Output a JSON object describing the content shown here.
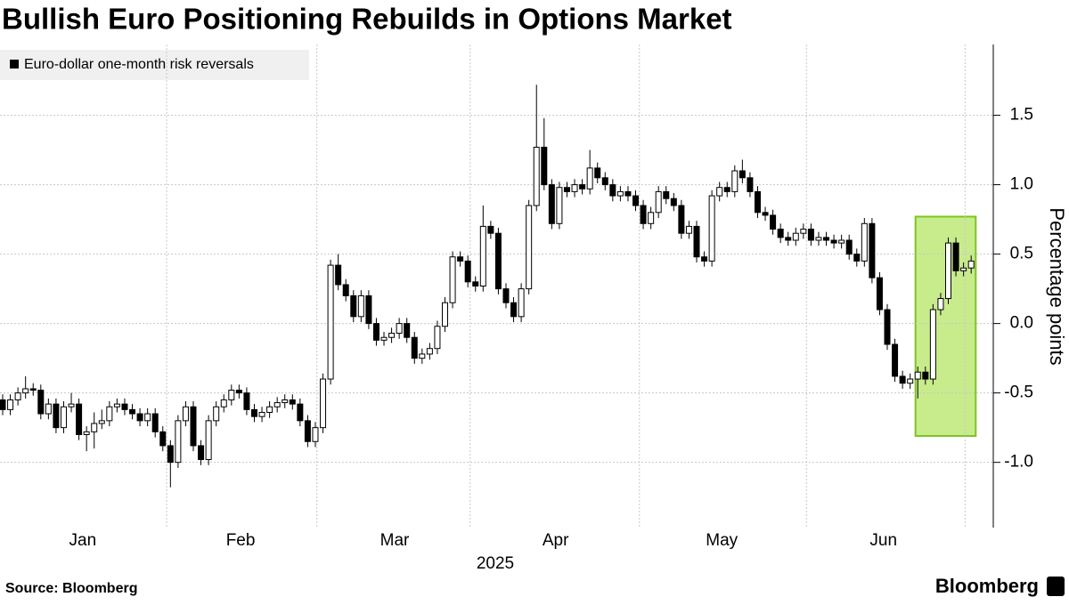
{
  "chart_data": {
    "type": "candlestick",
    "title": "Bullish Euro Positioning Rebuilds in Options Market",
    "legend": "Euro-dollar one-month risk reversals",
    "y_label": "Percentage points",
    "x_label": "2025",
    "source": "Source: Bloomberg",
    "brand": "Bloomberg",
    "up_color": "#ffffff",
    "down_color": "#000000",
    "open": [
      -0.55,
      -0.62,
      -0.55,
      -0.5,
      -0.47,
      -0.48,
      -0.65,
      -0.58,
      -0.75,
      -0.6,
      -0.58,
      -0.8,
      -0.78,
      -0.72,
      -0.7,
      -0.6,
      -0.58,
      -0.62,
      -0.65,
      -0.7,
      -0.65,
      -0.78,
      -0.88,
      -1.0,
      -0.7,
      -0.6,
      -0.88,
      -0.98,
      -0.7,
      -0.6,
      -0.55,
      -0.48,
      -0.5,
      -0.62,
      -0.67,
      -0.64,
      -0.6,
      -0.57,
      -0.55,
      -0.58,
      -0.7,
      -0.85,
      -0.75,
      -0.4,
      0.42,
      0.28,
      0.2,
      0.05,
      0.2,
      0.0,
      -0.12,
      -0.1,
      -0.07,
      0.0,
      -0.1,
      -0.25,
      -0.22,
      -0.18,
      -0.02,
      0.15,
      0.48,
      0.45,
      0.3,
      0.27,
      0.7,
      0.65,
      0.25,
      0.15,
      0.05,
      0.25,
      0.85,
      1.27,
      1.0,
      0.72,
      0.98,
      0.95,
      1.0,
      0.97,
      1.12,
      1.05,
      1.0,
      0.92,
      0.95,
      0.92,
      0.85,
      0.72,
      0.8,
      0.95,
      0.9,
      0.85,
      0.65,
      0.7,
      0.48,
      0.45,
      0.92,
      0.98,
      0.95,
      1.1,
      1.05,
      0.95,
      0.8,
      0.78,
      0.68,
      0.62,
      0.6,
      0.65,
      0.68,
      0.6,
      0.62,
      0.6,
      0.58,
      0.6,
      0.5,
      0.45,
      0.72,
      0.33,
      0.1,
      -0.15,
      -0.38,
      -0.43,
      -0.4,
      -0.35,
      -0.4,
      0.1,
      0.18,
      0.58,
      0.38,
      0.4
    ],
    "high": [
      -0.51,
      -0.51,
      -0.46,
      -0.38,
      -0.43,
      -0.44,
      -0.54,
      -0.54,
      -0.56,
      -0.5,
      -0.54,
      -0.74,
      -0.64,
      -0.62,
      -0.56,
      -0.54,
      -0.54,
      -0.58,
      -0.61,
      -0.61,
      -0.61,
      -0.74,
      -0.84,
      -0.66,
      -0.56,
      -0.56,
      -0.84,
      -0.66,
      -0.56,
      -0.51,
      -0.44,
      -0.44,
      -0.46,
      -0.58,
      -0.6,
      -0.56,
      -0.53,
      -0.51,
      -0.51,
      -0.54,
      -0.66,
      -0.71,
      -0.36,
      0.46,
      0.5,
      0.32,
      0.24,
      0.24,
      0.24,
      0.04,
      -0.06,
      -0.03,
      0.04,
      0.04,
      -0.06,
      -0.18,
      -0.14,
      0.02,
      0.19,
      0.52,
      0.52,
      0.49,
      0.34,
      0.85,
      0.74,
      0.69,
      0.29,
      0.19,
      0.29,
      0.89,
      1.72,
      1.48,
      1.04,
      1.02,
      1.02,
      1.04,
      1.04,
      1.25,
      1.16,
      1.09,
      1.04,
      0.99,
      0.99,
      0.96,
      0.89,
      0.84,
      0.99,
      0.99,
      0.94,
      0.89,
      0.74,
      0.74,
      0.52,
      0.96,
      1.02,
      1.02,
      1.14,
      1.18,
      1.09,
      0.99,
      0.84,
      0.82,
      0.72,
      0.66,
      0.69,
      0.72,
      0.72,
      0.66,
      0.66,
      0.64,
      0.64,
      0.64,
      0.54,
      0.76,
      0.76,
      0.37,
      0.14,
      -0.11,
      -0.34,
      -0.36,
      -0.31,
      -0.31,
      0.14,
      0.22,
      0.62,
      0.62,
      0.44,
      0.49
    ],
    "low": [
      -0.66,
      -0.66,
      -0.59,
      -0.54,
      -0.52,
      -0.69,
      -0.69,
      -0.79,
      -0.79,
      -0.64,
      -0.84,
      -0.92,
      -0.9,
      -0.76,
      -0.74,
      -0.64,
      -0.66,
      -0.69,
      -0.74,
      -0.74,
      -0.82,
      -0.92,
      -1.18,
      -1.04,
      -0.74,
      -0.92,
      -1.02,
      -1.02,
      -0.74,
      -0.64,
      -0.59,
      -0.54,
      -0.66,
      -0.71,
      -0.71,
      -0.68,
      -0.64,
      -0.61,
      -0.62,
      -0.74,
      -0.89,
      -0.89,
      -0.79,
      -0.44,
      0.24,
      0.16,
      0.01,
      0.01,
      -0.04,
      -0.16,
      -0.16,
      -0.14,
      -0.11,
      -0.14,
      -0.29,
      -0.29,
      -0.26,
      -0.22,
      -0.06,
      0.11,
      0.41,
      0.26,
      0.23,
      0.23,
      0.61,
      0.21,
      0.11,
      0.01,
      0.01,
      0.21,
      0.81,
      0.96,
      0.68,
      0.68,
      0.91,
      0.91,
      0.93,
      0.93,
      1.01,
      0.96,
      0.88,
      0.88,
      0.88,
      0.81,
      0.68,
      0.68,
      0.76,
      0.86,
      0.81,
      0.61,
      0.61,
      0.44,
      0.41,
      0.41,
      0.88,
      0.91,
      0.91,
      1.01,
      0.91,
      0.76,
      0.74,
      0.64,
      0.58,
      0.56,
      0.56,
      0.61,
      0.56,
      0.56,
      0.56,
      0.54,
      0.54,
      0.46,
      0.41,
      0.41,
      0.29,
      0.06,
      -0.19,
      -0.42,
      -0.47,
      -0.47,
      -0.54,
      -0.44,
      -0.44,
      0.06,
      0.14,
      0.34,
      0.34,
      0.36
    ],
    "close": [
      -0.62,
      -0.55,
      -0.5,
      -0.47,
      -0.48,
      -0.65,
      -0.58,
      -0.75,
      -0.6,
      -0.58,
      -0.8,
      -0.78,
      -0.72,
      -0.7,
      -0.6,
      -0.58,
      -0.62,
      -0.65,
      -0.7,
      -0.65,
      -0.78,
      -0.88,
      -1.0,
      -0.7,
      -0.6,
      -0.88,
      -0.98,
      -0.7,
      -0.6,
      -0.55,
      -0.48,
      -0.5,
      -0.62,
      -0.67,
      -0.64,
      -0.6,
      -0.57,
      -0.55,
      -0.58,
      -0.7,
      -0.85,
      -0.75,
      -0.4,
      0.42,
      0.28,
      0.2,
      0.05,
      0.2,
      0.0,
      -0.12,
      -0.1,
      -0.07,
      0.0,
      -0.1,
      -0.25,
      -0.22,
      -0.18,
      -0.02,
      0.15,
      0.48,
      0.45,
      0.3,
      0.27,
      0.7,
      0.65,
      0.25,
      0.15,
      0.05,
      0.25,
      0.85,
      1.27,
      1.0,
      0.72,
      0.98,
      0.95,
      1.0,
      0.97,
      1.12,
      1.05,
      1.0,
      0.92,
      0.95,
      0.92,
      0.85,
      0.72,
      0.8,
      0.95,
      0.9,
      0.85,
      0.65,
      0.7,
      0.48,
      0.45,
      0.92,
      0.98,
      0.95,
      1.1,
      1.05,
      0.95,
      0.8,
      0.78,
      0.68,
      0.62,
      0.6,
      0.65,
      0.68,
      0.6,
      0.62,
      0.6,
      0.58,
      0.6,
      0.5,
      0.45,
      0.72,
      0.33,
      0.1,
      -0.15,
      -0.38,
      -0.43,
      -0.4,
      -0.35,
      -0.4,
      0.1,
      0.18,
      0.58,
      0.38,
      0.4,
      0.45
    ],
    "xlim": [
      -0.35,
      129.9
    ],
    "xticks": [
      {
        "value": 10.5,
        "label": "Jan"
      },
      {
        "value": 31.2,
        "label": "Feb"
      },
      {
        "value": 51.4,
        "label": "Mar"
      },
      {
        "value": 72.5,
        "label": "Apr"
      },
      {
        "value": 94.3,
        "label": "May"
      },
      {
        "value": 115.5,
        "label": "Jun"
      }
    ],
    "xgrid": [
      21.5,
      41.2,
      61.3,
      83.5,
      105.4,
      126.2
    ],
    "ylim": [
      -1.47,
      2.01
    ],
    "yticks": [
      {
        "value": -1,
        "label": "-1.0"
      },
      -0.5,
      {
        "value": 0,
        "label": "0.0"
      },
      0.5,
      {
        "value": 1,
        "label": "1.0"
      },
      1.5
    ],
    "grid": true,
    "highlight": {
      "x0": 119.7,
      "x1": 127.6,
      "y0": -0.81,
      "y1": 0.77,
      "color": "#c8eb8c",
      "border": "#7cc520"
    }
  }
}
